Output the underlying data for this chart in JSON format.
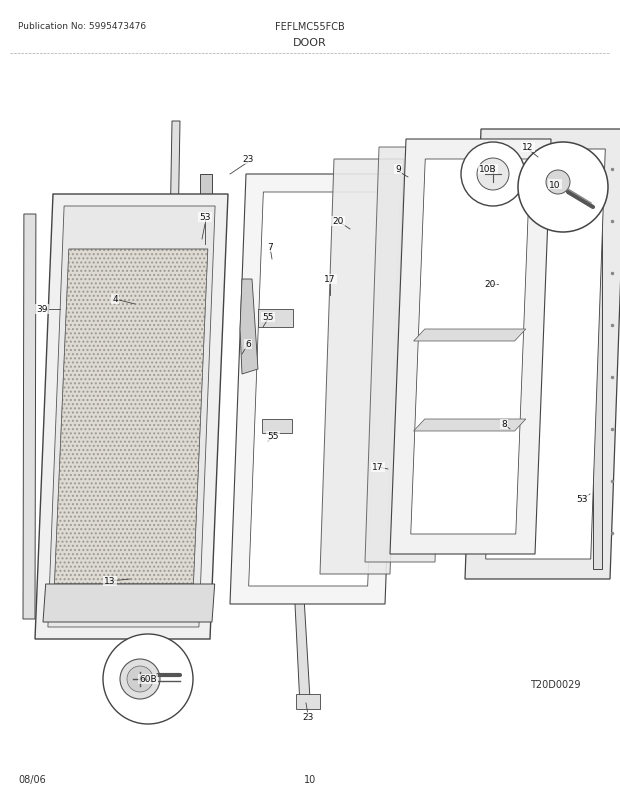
{
  "pub_no": "Publication No: 5995473476",
  "model": "FEFLMC55FCB",
  "section": "DOOR",
  "diagram_id": "T20D0029",
  "date": "08/06",
  "page": "10",
  "bg_color": "#ffffff"
}
